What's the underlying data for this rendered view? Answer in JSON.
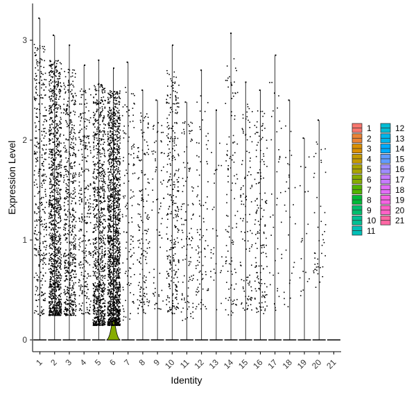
{
  "chart_data": {
    "type": "violin",
    "xlabel": "Identity",
    "ylabel": "Expression Level",
    "categories": [
      "1",
      "2",
      "3",
      "4",
      "5",
      "6",
      "7",
      "8",
      "9",
      "10",
      "11",
      "12",
      "13",
      "14",
      "15",
      "16",
      "17",
      "18",
      "19",
      "20",
      "21"
    ],
    "ylim": [
      0,
      3.3
    ],
    "yticks": [
      0,
      1,
      2,
      3
    ],
    "violin_max": [
      3.22,
      3.05,
      2.95,
      2.75,
      2.8,
      2.72,
      2.78,
      2.5,
      2.4,
      2.95,
      2.38,
      2.7,
      2.3,
      3.07,
      2.58,
      2.5,
      2.85,
      2.4,
      2.02,
      2.2,
      0.0
    ],
    "point_density": [
      380,
      1200,
      600,
      280,
      900,
      1600,
      120,
      160,
      70,
      300,
      110,
      90,
      30,
      110,
      110,
      150,
      40,
      30,
      20,
      45,
      0
    ],
    "point_ymin": [
      0.25,
      0.25,
      0.25,
      0.25,
      0.15,
      0.15,
      0.2,
      0.25,
      0.3,
      0.25,
      0.2,
      0.3,
      0.3,
      0.25,
      0.3,
      0.25,
      0.3,
      0.3,
      0.4,
      0.5,
      0
    ],
    "highlight_violin": {
      "category": "6",
      "peak_height": 0.18
    },
    "grid": false,
    "legend_position": "right",
    "legend": {
      "entries": [
        "1",
        "2",
        "3",
        "4",
        "5",
        "6",
        "7",
        "8",
        "9",
        "10",
        "11",
        "12",
        "13",
        "14",
        "15",
        "16",
        "17",
        "18",
        "19",
        "20",
        "21"
      ],
      "colors": [
        "#F8766D",
        "#EB8335",
        "#DA8F00",
        "#C49A00",
        "#A9A400",
        "#86AC00",
        "#53B400",
        "#00BA38",
        "#00BE6D",
        "#00C094",
        "#00C0B7",
        "#00BDD5",
        "#00B6EB",
        "#00ABFD",
        "#619CFF",
        "#9F8CFF",
        "#C77CFF",
        "#E26EF7",
        "#F464E2",
        "#FF61C7",
        "#FF67A4"
      ]
    }
  }
}
